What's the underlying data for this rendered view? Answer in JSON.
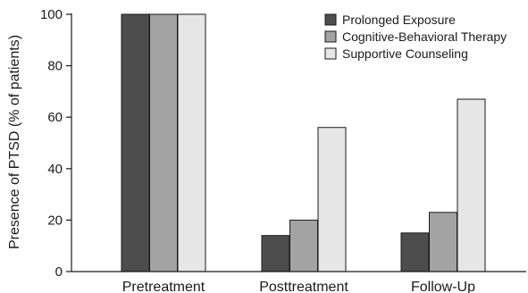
{
  "chart_data": {
    "type": "bar",
    "title": "",
    "xlabel": "",
    "ylabel": "Presence of PTSD (% of patients)",
    "ylim": [
      0,
      100
    ],
    "yticks": [
      0,
      20,
      40,
      60,
      80,
      100
    ],
    "grid": false,
    "legend_position": "top-right",
    "categories": [
      "Pretreatment",
      "Posttreatment",
      "Follow-Up"
    ],
    "series": [
      {
        "name": "Prolonged Exposure",
        "color": "#4d4d4d",
        "values": [
          100,
          14,
          15
        ]
      },
      {
        "name": "Cognitive-Behavioral Therapy",
        "color": "#a3a3a3",
        "values": [
          100,
          20,
          23
        ]
      },
      {
        "name": "Supportive Counseling",
        "color": "#e6e6e6",
        "values": [
          100,
          56,
          67
        ]
      }
    ]
  }
}
